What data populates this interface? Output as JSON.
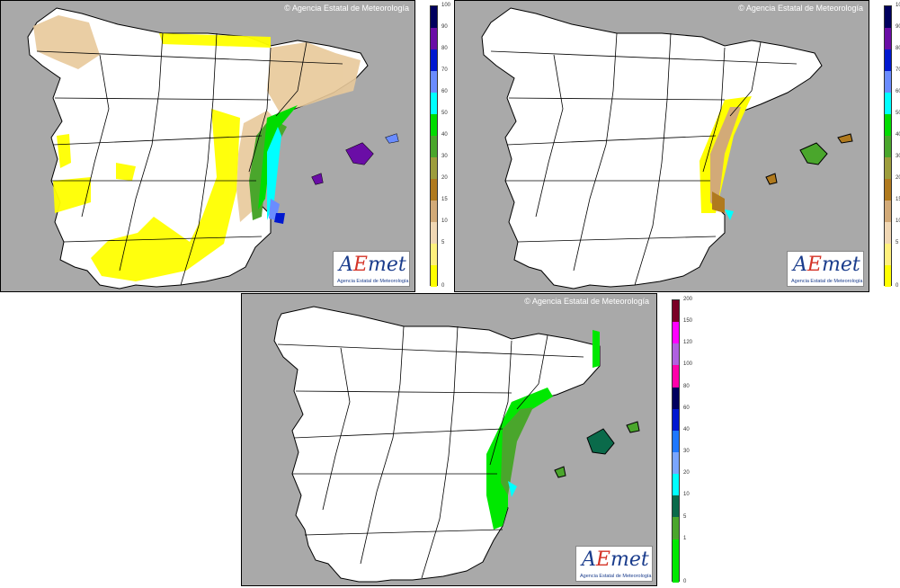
{
  "copyright": "© Agencia Estatal de Meteorología",
  "logo": {
    "wordmark_a": "A",
    "wordmark_e": "E",
    "wordmark_rest": "met",
    "subtitle": "Agencia Estatal de Meteorología"
  },
  "legend_small": {
    "labels": [
      "100",
      "90",
      "80",
      "70",
      "60",
      "50",
      "40",
      "30",
      "20",
      "15",
      "10",
      "5",
      "0"
    ],
    "colors": [
      "#00005e",
      "#6a0da6",
      "#0018d0",
      "#6a8cff",
      "#00ffff",
      "#00dc00",
      "#4aa62c",
      "#9d9d3c",
      "#b07a1e",
      "#d2aa78",
      "#f0d7b4",
      "#fff07d",
      "#ffff00"
    ]
  },
  "legend_large": {
    "labels": [
      "200",
      "150",
      "120",
      "100",
      "80",
      "60",
      "40",
      "30",
      "20",
      "10",
      "5",
      "1",
      "0"
    ],
    "colors": [
      "#7a0026",
      "#ff00ff",
      "#b060e0",
      "#ff00aa",
      "#00005e",
      "#0018d0",
      "#1e78ff",
      "#7aa6ff",
      "#00ffff",
      "#0a6a4a",
      "#4aa62c",
      "#00e800",
      "#00e800"
    ]
  },
  "colors": {
    "sea": "#a9a9a9",
    "land": "#ffffff"
  }
}
